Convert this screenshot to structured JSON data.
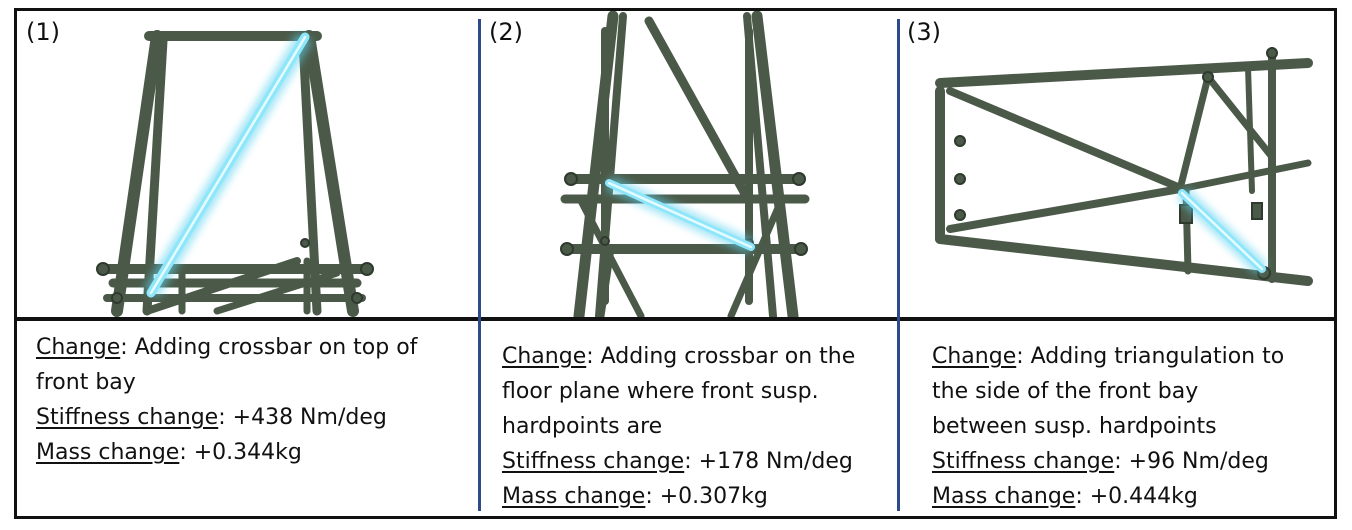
{
  "panels": [
    {
      "number": "(1)",
      "change_label": "Change",
      "change_text_1": ": Adding crossbar on top of",
      "change_text_2": "front bay",
      "stiffness_label": "Stiffness change",
      "stiffness_value": ": +438 Nm/deg",
      "mass_label": "Mass change",
      "mass_value": ": +0.344kg"
    },
    {
      "number": "(2)",
      "change_label": "Change",
      "change_text_1": ": Adding crossbar on the",
      "change_text_2": "floor plane where front susp.",
      "change_text_3": "hardpoints are",
      "stiffness_label": "Stiffness change",
      "stiffness_value": ": +178 Nm/deg",
      "mass_label": "Mass change",
      "mass_value": ": +0.307kg"
    },
    {
      "number": "(3)",
      "change_label": "Change",
      "change_text_1": ": Adding triangulation to",
      "change_text_2": "the side of the front bay",
      "change_text_3": "between susp. hardpoints",
      "stiffness_label": "Stiffness change",
      "stiffness_value": ": +96 Nm/deg",
      "mass_label": "Mass change",
      "mass_value": ": +0.444kg"
    }
  ],
  "colors": {
    "tube": "#4b5a48",
    "tube_dark": "#2f3a2e",
    "highlight": "#5fd3f0",
    "separator": "#2f4a8a"
  }
}
